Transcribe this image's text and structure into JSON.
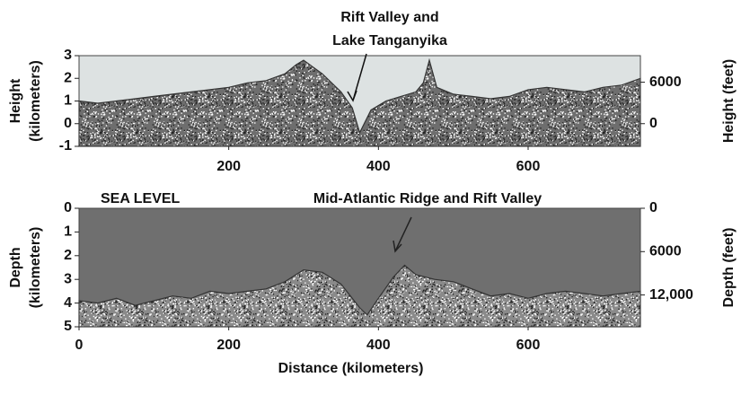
{
  "chart_data": [
    {
      "type": "area",
      "annotation": [
        "Rift Valley and",
        "Lake Tanganyika"
      ],
      "ylabel": [
        "Height",
        "(kilometers)"
      ],
      "y2label": "Height (feet)",
      "x": [
        0,
        25,
        50,
        75,
        100,
        125,
        150,
        175,
        200,
        225,
        250,
        275,
        290,
        300,
        325,
        350,
        365,
        375,
        390,
        410,
        430,
        450,
        460,
        468,
        478,
        500,
        525,
        550,
        575,
        600,
        625,
        650,
        675,
        700,
        725,
        750
      ],
      "values": [
        1.0,
        0.9,
        1.0,
        1.1,
        1.2,
        1.3,
        1.4,
        1.5,
        1.6,
        1.8,
        1.9,
        2.2,
        2.6,
        2.8,
        2.2,
        1.4,
        0.7,
        -0.4,
        0.6,
        1.0,
        1.2,
        1.4,
        1.8,
        2.8,
        1.6,
        1.3,
        1.2,
        1.1,
        1.2,
        1.5,
        1.6,
        1.5,
        1.4,
        1.6,
        1.7,
        2.0
      ],
      "color": "#6e6e6e",
      "background": "#dde2e2",
      "xlim": [
        0,
        750
      ],
      "xticks": [
        200,
        400,
        600
      ],
      "ylim": [
        -1,
        3
      ],
      "yticks": [
        3,
        2,
        1,
        0,
        -1
      ],
      "y2lim": [
        -3281,
        9843
      ],
      "y2ticks": [
        6000,
        0
      ]
    },
    {
      "type": "area",
      "sea_level_label": "SEA LEVEL",
      "annotation": [
        "Mid-Atlantic Ridge and Rift Valley"
      ],
      "ylabel": [
        "Depth",
        "(kilometers)"
      ],
      "y2label": "Depth (feet)",
      "xlabel": "Distance (kilometers)",
      "x": [
        0,
        25,
        50,
        75,
        100,
        125,
        150,
        175,
        200,
        225,
        250,
        275,
        300,
        325,
        350,
        375,
        385,
        400,
        420,
        435,
        450,
        475,
        500,
        525,
        550,
        575,
        600,
        625,
        650,
        675,
        700,
        725,
        750
      ],
      "values": [
        3.9,
        4.0,
        3.8,
        4.1,
        3.9,
        3.7,
        3.8,
        3.5,
        3.6,
        3.5,
        3.4,
        3.1,
        2.6,
        2.7,
        3.2,
        4.2,
        4.5,
        3.8,
        2.9,
        2.4,
        2.8,
        3.0,
        3.1,
        3.4,
        3.7,
        3.6,
        3.8,
        3.6,
        3.5,
        3.6,
        3.7,
        3.6,
        3.5
      ],
      "color": "#8a8a8a",
      "background": "#6f6f6f",
      "xlim": [
        0,
        750
      ],
      "xticks": [
        0,
        200,
        400,
        600
      ],
      "ylim": [
        5,
        0
      ],
      "yticks": [
        0,
        1,
        2,
        3,
        4,
        5
      ],
      "y2lim": [
        16404,
        0
      ],
      "y2ticks": [
        0,
        6000,
        {
          "value": 12000,
          "label": "12,000"
        }
      ]
    }
  ]
}
